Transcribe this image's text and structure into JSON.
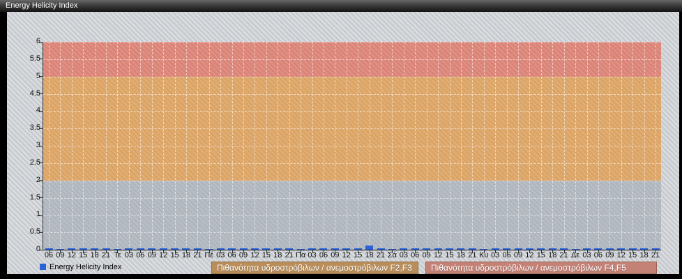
{
  "window": {
    "title": "Energy Helicity Index"
  },
  "chart_data": {
    "type": "bar",
    "title": "Energy Helicity Index",
    "ylabel": "Energy Helicity Index",
    "xlabel": "",
    "ylim": [
      0,
      6
    ],
    "ytick_labels": [
      "0",
      "0.5",
      "1",
      "1.5",
      "2",
      "2.5",
      "3",
      "3.5",
      "4",
      "4.5",
      "5",
      "5.5",
      "6"
    ],
    "grid": "white dashed, vertical at every 3-hour tick, horizontal every 0.5",
    "legend_position": "bottom-left",
    "categories": [
      "06",
      "09",
      "12",
      "15",
      "18",
      "21",
      "Τε",
      "03",
      "06",
      "09",
      "12",
      "15",
      "18",
      "21",
      "Πέ",
      "03",
      "06",
      "09",
      "12",
      "15",
      "18",
      "21",
      "Πα",
      "03",
      "06",
      "09",
      "12",
      "15",
      "18",
      "21",
      "Σά",
      "03",
      "06",
      "09",
      "12",
      "15",
      "18",
      "21",
      "Κυ",
      "03",
      "06",
      "09",
      "12",
      "15",
      "18",
      "21",
      "Δε",
      "03",
      "06",
      "09",
      "12",
      "15",
      "18",
      "21"
    ],
    "series": [
      {
        "name": "Energy Helicity Index",
        "color": "#2a62d8",
        "values": [
          0.02,
          0.01,
          0.03,
          0.03,
          0.03,
          0.03,
          0.01,
          0.02,
          0.03,
          0.03,
          0.03,
          0.03,
          0.03,
          0.03,
          0.01,
          0.02,
          0.02,
          0.02,
          0.03,
          0.03,
          0.03,
          0.03,
          0.01,
          0.02,
          0.03,
          0.03,
          0.03,
          0.03,
          0.12,
          0.02,
          0.01,
          0.02,
          0.02,
          0.02,
          0.03,
          0.05,
          0.02,
          0.02,
          0.01,
          0.02,
          0.02,
          0.02,
          0.03,
          0.05,
          0.02,
          0.02,
          0.01,
          0.02,
          0.02,
          0.02,
          0.03,
          0.03,
          0.02,
          0.02
        ]
      }
    ],
    "bands": [
      {
        "from": 0,
        "to": 2,
        "color": "#b0b6be",
        "label": ""
      },
      {
        "from": 2,
        "to": 5,
        "color": "#dca464",
        "label": "Πιθανότητα υδροστρόβιλων / ανεμοστρόβιλων F2,F3"
      },
      {
        "from": 5,
        "to": 6,
        "color": "#db8376",
        "label": "Πιθανότητα υδροστρόβιλων / ανεμοστρόβιλων F4,F5"
      }
    ]
  },
  "legend": {
    "label": "Energy Helicity Index",
    "swatch_color": "#2a62d8"
  },
  "colors": {
    "bar": "#2a62d8",
    "titlebar_text": "#ffffff",
    "frame": "#000000",
    "bg_stripe_base": "#c8ccd0",
    "band_label_f23_bg": "#b98e5b",
    "band_label_f45_bg": "#c48175"
  }
}
